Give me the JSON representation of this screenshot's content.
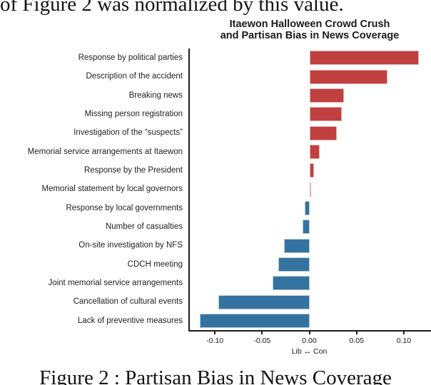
{
  "page": {
    "top_text": "of Figure 2 was normalized by this value.",
    "caption": "Figure 2 : Partisan Bias in News Coverage"
  },
  "chart_data": {
    "type": "bar",
    "orientation": "horizontal",
    "title_line1": "Itaewon Halloween Crowd Crush",
    "title_line2": "and Partisan Bias in News Coverage",
    "xlabel": "Lib ↔ Con",
    "categories": [
      "Response by political parties",
      "Description of the accident",
      "Breaking news",
      "Missing person registration",
      "Investigation of the “suspects”",
      "Memorial service arrangements at Itaewon",
      "Response by the President",
      "Memorial statement by local governors",
      "Response by local governments",
      "Number of casualties",
      "On-site investigation by NFS",
      "CDCH meeting",
      "Joint memorial service arrangements",
      "Cancellation of cultural events",
      "Lack of preventive measures"
    ],
    "values": [
      0.116,
      0.083,
      0.037,
      0.034,
      0.029,
      0.011,
      0.005,
      0.001,
      -0.005,
      -0.007,
      -0.027,
      -0.033,
      -0.039,
      -0.096,
      -0.116
    ],
    "xticks": [
      {
        "value": -0.1,
        "label": "-0.10"
      },
      {
        "value": -0.05,
        "label": "-0.05"
      },
      {
        "value": 0.0,
        "label": "0.00"
      },
      {
        "value": 0.05,
        "label": "0.05"
      },
      {
        "value": 0.1,
        "label": "0.10"
      }
    ],
    "xlim": [
      -0.1265,
      0.1295
    ],
    "grid": false,
    "legend": "none",
    "colors": {
      "positive_fill": "#c04040",
      "positive_edge": "#e6afaf",
      "negative_fill": "#34739f",
      "negative_edge": "#b5cbd9",
      "axis": "#1c1c1c"
    }
  }
}
